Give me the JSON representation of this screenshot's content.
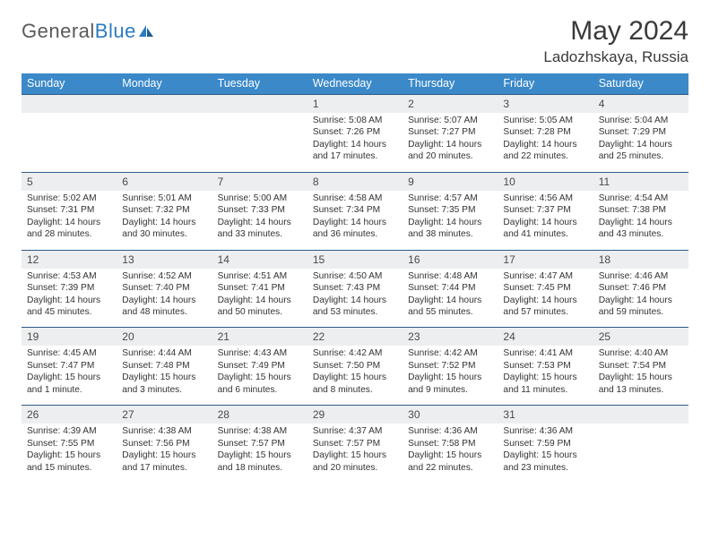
{
  "logo": {
    "text_general": "General",
    "text_blue": "Blue"
  },
  "header": {
    "month_title": "May 2024",
    "location": "Ladozhskaya, Russia"
  },
  "colors": {
    "header_bg": "#3b89c9",
    "daynum_bg": "#eceef0",
    "week_divider": "#2f5a85",
    "text_primary": "#333333",
    "title_text": "#3a3a3a",
    "logo_gray": "#5a5a5a",
    "logo_blue": "#2b7bbf"
  },
  "weekdays": [
    "Sunday",
    "Monday",
    "Tuesday",
    "Wednesday",
    "Thursday",
    "Friday",
    "Saturday"
  ],
  "weeks": [
    [
      {
        "num": "",
        "lines": []
      },
      {
        "num": "",
        "lines": []
      },
      {
        "num": "",
        "lines": []
      },
      {
        "num": "1",
        "lines": [
          "Sunrise: 5:08 AM",
          "Sunset: 7:26 PM",
          "Daylight: 14 hours and 17 minutes."
        ]
      },
      {
        "num": "2",
        "lines": [
          "Sunrise: 5:07 AM",
          "Sunset: 7:27 PM",
          "Daylight: 14 hours and 20 minutes."
        ]
      },
      {
        "num": "3",
        "lines": [
          "Sunrise: 5:05 AM",
          "Sunset: 7:28 PM",
          "Daylight: 14 hours and 22 minutes."
        ]
      },
      {
        "num": "4",
        "lines": [
          "Sunrise: 5:04 AM",
          "Sunset: 7:29 PM",
          "Daylight: 14 hours and 25 minutes."
        ]
      }
    ],
    [
      {
        "num": "5",
        "lines": [
          "Sunrise: 5:02 AM",
          "Sunset: 7:31 PM",
          "Daylight: 14 hours and 28 minutes."
        ]
      },
      {
        "num": "6",
        "lines": [
          "Sunrise: 5:01 AM",
          "Sunset: 7:32 PM",
          "Daylight: 14 hours and 30 minutes."
        ]
      },
      {
        "num": "7",
        "lines": [
          "Sunrise: 5:00 AM",
          "Sunset: 7:33 PM",
          "Daylight: 14 hours and 33 minutes."
        ]
      },
      {
        "num": "8",
        "lines": [
          "Sunrise: 4:58 AM",
          "Sunset: 7:34 PM",
          "Daylight: 14 hours and 36 minutes."
        ]
      },
      {
        "num": "9",
        "lines": [
          "Sunrise: 4:57 AM",
          "Sunset: 7:35 PM",
          "Daylight: 14 hours and 38 minutes."
        ]
      },
      {
        "num": "10",
        "lines": [
          "Sunrise: 4:56 AM",
          "Sunset: 7:37 PM",
          "Daylight: 14 hours and 41 minutes."
        ]
      },
      {
        "num": "11",
        "lines": [
          "Sunrise: 4:54 AM",
          "Sunset: 7:38 PM",
          "Daylight: 14 hours and 43 minutes."
        ]
      }
    ],
    [
      {
        "num": "12",
        "lines": [
          "Sunrise: 4:53 AM",
          "Sunset: 7:39 PM",
          "Daylight: 14 hours and 45 minutes."
        ]
      },
      {
        "num": "13",
        "lines": [
          "Sunrise: 4:52 AM",
          "Sunset: 7:40 PM",
          "Daylight: 14 hours and 48 minutes."
        ]
      },
      {
        "num": "14",
        "lines": [
          "Sunrise: 4:51 AM",
          "Sunset: 7:41 PM",
          "Daylight: 14 hours and 50 minutes."
        ]
      },
      {
        "num": "15",
        "lines": [
          "Sunrise: 4:50 AM",
          "Sunset: 7:43 PM",
          "Daylight: 14 hours and 53 minutes."
        ]
      },
      {
        "num": "16",
        "lines": [
          "Sunrise: 4:48 AM",
          "Sunset: 7:44 PM",
          "Daylight: 14 hours and 55 minutes."
        ]
      },
      {
        "num": "17",
        "lines": [
          "Sunrise: 4:47 AM",
          "Sunset: 7:45 PM",
          "Daylight: 14 hours and 57 minutes."
        ]
      },
      {
        "num": "18",
        "lines": [
          "Sunrise: 4:46 AM",
          "Sunset: 7:46 PM",
          "Daylight: 14 hours and 59 minutes."
        ]
      }
    ],
    [
      {
        "num": "19",
        "lines": [
          "Sunrise: 4:45 AM",
          "Sunset: 7:47 PM",
          "Daylight: 15 hours and 1 minute."
        ]
      },
      {
        "num": "20",
        "lines": [
          "Sunrise: 4:44 AM",
          "Sunset: 7:48 PM",
          "Daylight: 15 hours and 3 minutes."
        ]
      },
      {
        "num": "21",
        "lines": [
          "Sunrise: 4:43 AM",
          "Sunset: 7:49 PM",
          "Daylight: 15 hours and 6 minutes."
        ]
      },
      {
        "num": "22",
        "lines": [
          "Sunrise: 4:42 AM",
          "Sunset: 7:50 PM",
          "Daylight: 15 hours and 8 minutes."
        ]
      },
      {
        "num": "23",
        "lines": [
          "Sunrise: 4:42 AM",
          "Sunset: 7:52 PM",
          "Daylight: 15 hours and 9 minutes."
        ]
      },
      {
        "num": "24",
        "lines": [
          "Sunrise: 4:41 AM",
          "Sunset: 7:53 PM",
          "Daylight: 15 hours and 11 minutes."
        ]
      },
      {
        "num": "25",
        "lines": [
          "Sunrise: 4:40 AM",
          "Sunset: 7:54 PM",
          "Daylight: 15 hours and 13 minutes."
        ]
      }
    ],
    [
      {
        "num": "26",
        "lines": [
          "Sunrise: 4:39 AM",
          "Sunset: 7:55 PM",
          "Daylight: 15 hours and 15 minutes."
        ]
      },
      {
        "num": "27",
        "lines": [
          "Sunrise: 4:38 AM",
          "Sunset: 7:56 PM",
          "Daylight: 15 hours and 17 minutes."
        ]
      },
      {
        "num": "28",
        "lines": [
          "Sunrise: 4:38 AM",
          "Sunset: 7:57 PM",
          "Daylight: 15 hours and 18 minutes."
        ]
      },
      {
        "num": "29",
        "lines": [
          "Sunrise: 4:37 AM",
          "Sunset: 7:57 PM",
          "Daylight: 15 hours and 20 minutes."
        ]
      },
      {
        "num": "30",
        "lines": [
          "Sunrise: 4:36 AM",
          "Sunset: 7:58 PM",
          "Daylight: 15 hours and 22 minutes."
        ]
      },
      {
        "num": "31",
        "lines": [
          "Sunrise: 4:36 AM",
          "Sunset: 7:59 PM",
          "Daylight: 15 hours and 23 minutes."
        ]
      },
      {
        "num": "",
        "lines": []
      }
    ]
  ]
}
